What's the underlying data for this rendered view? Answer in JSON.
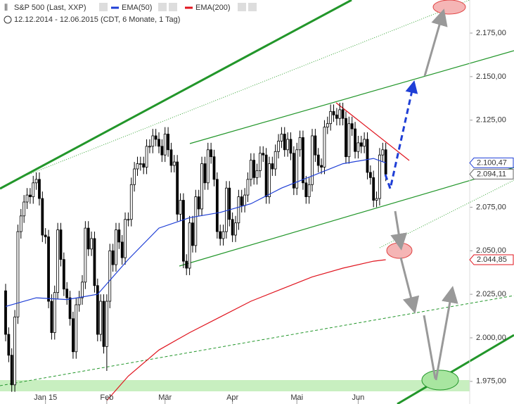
{
  "chart_data": {
    "type": "candlestick",
    "title": "S&P 500 (Last, XXP)",
    "subtitle": "12.12.2014 - 12.06.2015 (CDT, 6 Monate, 1 Tag)",
    "categories": [
      null,
      null,
      null,
      null,
      null,
      null,
      null,
      null,
      null,
      null,
      null,
      null,
      null,
      "Jan 15",
      null,
      null,
      null,
      null,
      null,
      null,
      null,
      null,
      null,
      null,
      null,
      null,
      null,
      null,
      null,
      null,
      null,
      null,
      null,
      "Feb",
      null,
      null,
      null,
      null,
      null,
      null,
      null,
      null,
      null,
      null,
      null,
      null,
      null,
      null,
      null,
      null,
      null,
      null,
      "Mär",
      null,
      null,
      null,
      null,
      null,
      null,
      null,
      null,
      null,
      null,
      null,
      null,
      null,
      null,
      null,
      null,
      null,
      null,
      null,
      null,
      null,
      "Apr",
      null,
      null,
      null,
      null,
      null,
      null,
      null,
      null,
      null,
      null,
      null,
      null,
      null,
      null,
      null,
      null,
      null,
      null,
      null,
      null,
      "Mai",
      null,
      null,
      null,
      null,
      null,
      null,
      null,
      null,
      null,
      null,
      null,
      null,
      null,
      null,
      null,
      null,
      null,
      null,
      null,
      "Jun",
      null,
      null,
      null,
      null,
      null,
      null,
      null,
      null,
      null
    ],
    "open": [
      2027,
      2002,
      1990,
      1973,
      2012,
      2061,
      2070,
      2078,
      2082,
      2081,
      2089,
      2091,
      2080,
      2059,
      2058,
      2021,
      2003,
      2026,
      2062,
      2045,
      2028,
      2023,
      2011,
      1992,
      2019,
      2023,
      2032,
      2063,
      2051,
      2057,
      2030,
      2002,
      2021,
      1995,
      2021,
      2050,
      2042,
      2062,
      2055,
      2046,
      2068,
      2068,
      2088,
      2097,
      2100,
      2100,
      2098,
      2110,
      2110,
      2116,
      2114,
      2110,
      2105,
      2117,
      2108,
      2099,
      2101,
      2071,
      2079,
      2044,
      2040,
      2066,
      2053,
      2081,
      2074,
      2100,
      2089,
      2108,
      2104,
      2091,
      2061,
      2057,
      2061,
      2086,
      2068,
      2059,
      2066,
      2081,
      2076,
      2082,
      2091,
      2102,
      2092,
      2096,
      2106,
      2105,
      2081,
      2100,
      2097,
      2107,
      2113,
      2117,
      2108,
      2114,
      2106,
      2086,
      2108,
      2115,
      2089,
      2081,
      2088,
      2116,
      2105,
      2099,
      2098,
      2121,
      2123,
      2130,
      2128,
      2126,
      2131,
      2126,
      2104,
      2123,
      2120,
      2107,
      2112,
      2110,
      2114,
      2095,
      2092,
      2079,
      2080,
      2105,
      2108
    ],
    "high": [
      2031,
      2006,
      1994,
      2016,
      2065,
      2074,
      2082,
      2086,
      2086,
      2093,
      2095,
      2095,
      2084,
      2063,
      2062,
      2025,
      2030,
      2066,
      2066,
      2049,
      2032,
      2027,
      2015,
      2023,
      2027,
      2036,
      2067,
      2067,
      2061,
      2061,
      2034,
      2025,
      2025,
      2025,
      2054,
      2054,
      2066,
      2066,
      2059,
      2072,
      2072,
      2092,
      2101,
      2104,
      2104,
      2104,
      2114,
      2114,
      2120,
      2120,
      2118,
      2114,
      2121,
      2121,
      2112,
      2105,
      2105,
      2083,
      2083,
      2048,
      2070,
      2070,
      2085,
      2085,
      2104,
      2104,
      2112,
      2112,
      2108,
      2095,
      2065,
      2065,
      2090,
      2090,
      2072,
      2070,
      2085,
      2085,
      2086,
      2095,
      2106,
      2106,
      2100,
      2110,
      2110,
      2109,
      2104,
      2104,
      2111,
      2117,
      2121,
      2121,
      2118,
      2118,
      2110,
      2112,
      2119,
      2119,
      2093,
      2092,
      2120,
      2120,
      2109,
      2103,
      2125,
      2127,
      2134,
      2134,
      2132,
      2135,
      2135,
      2130,
      2127,
      2127,
      2124,
      2116,
      2116,
      2118,
      2118,
      2099,
      2096,
      2084,
      2109,
      2112,
      2112
    ],
    "low": [
      1998,
      1986,
      1969,
      1969,
      2008,
      2057,
      2066,
      2074,
      2077,
      2077,
      2085,
      2076,
      2055,
      2054,
      2017,
      1999,
      1999,
      2022,
      2041,
      2024,
      2019,
      2007,
      1988,
      1988,
      2015,
      2019,
      2028,
      2047,
      2047,
      2026,
      1998,
      1998,
      1991,
      1981,
      2017,
      2038,
      2038,
      2051,
      2042,
      2042,
      2064,
      2064,
      2084,
      2093,
      2096,
      2094,
      2094,
      2106,
      2106,
      2110,
      2106,
      2101,
      2101,
      2104,
      2095,
      2095,
      2067,
      2067,
      2040,
      2036,
      2036,
      2049,
      2049,
      2070,
      2070,
      2085,
      2085,
      2100,
      2087,
      2057,
      2053,
      2053,
      2057,
      2064,
      2055,
      2055,
      2062,
      2072,
      2072,
      2078,
      2087,
      2088,
      2088,
      2092,
      2101,
      2077,
      2077,
      2093,
      2093,
      2103,
      2109,
      2104,
      2104,
      2102,
      2082,
      2082,
      2104,
      2085,
      2077,
      2077,
      2084,
      2101,
      2095,
      2094,
      2094,
      2117,
      2119,
      2124,
      2122,
      2122,
      2122,
      2100,
      2100,
      2116,
      2103,
      2103,
      2106,
      2106,
      2091,
      2088,
      2075,
      2075,
      2076,
      2101,
      2090
    ],
    "close": [
      2002,
      1990,
      1973,
      2012,
      2061,
      2070,
      2078,
      2082,
      2081,
      2089,
      2091,
      2080,
      2059,
      2058,
      2021,
      2003,
      2026,
      2062,
      2045,
      2028,
      2023,
      2011,
      1992,
      2019,
      2023,
      2032,
      2063,
      2051,
      2057,
      2030,
      2002,
      2021,
      1995,
      2021,
      2050,
      2042,
      2062,
      2055,
      2046,
      2068,
      2068,
      2088,
      2097,
      2100,
      2100,
      2098,
      2110,
      2110,
      2116,
      2114,
      2110,
      2105,
      2117,
      2108,
      2099,
      2101,
      2071,
      2079,
      2044,
      2040,
      2066,
      2053,
      2081,
      2074,
      2100,
      2089,
      2108,
      2104,
      2091,
      2061,
      2057,
      2061,
      2086,
      2068,
      2059,
      2066,
      2081,
      2076,
      2082,
      2091,
      2102,
      2092,
      2096,
      2106,
      2105,
      2081,
      2100,
      2097,
      2107,
      2113,
      2117,
      2108,
      2114,
      2106,
      2086,
      2108,
      2115,
      2089,
      2081,
      2088,
      2116,
      2105,
      2099,
      2098,
      2121,
      2123,
      2130,
      2128,
      2126,
      2131,
      2126,
      2104,
      2123,
      2120,
      2107,
      2112,
      2110,
      2114,
      2095,
      2092,
      2079,
      2080,
      2105,
      2108,
      2094
    ],
    "last_label": "2.094,11",
    "overlays": [
      {
        "name": "EMA(50)",
        "color": "#1f3fd6",
        "x": [
          0,
          10,
          20,
          30,
          40,
          50,
          60,
          70,
          80,
          90,
          100,
          110,
          120,
          124
        ],
        "values": [
          2018,
          2023,
          2022,
          2025,
          2045,
          2063,
          2069,
          2072,
          2077,
          2086,
          2093,
          2100,
          2103,
          2100.47
        ],
        "last_label": "2.100,47"
      },
      {
        "name": "EMA(200)",
        "color": "#e0141e",
        "x": [
          33,
          40,
          50,
          60,
          70,
          80,
          90,
          100,
          110,
          120,
          124
        ],
        "values": [
          1964,
          1978,
          1993,
          2003,
          2012,
          2021,
          2028,
          2035,
          2040,
          2044,
          2044.85
        ],
        "last_label": "2.044,85"
      }
    ],
    "ylim": [
      1962,
      2194
    ],
    "yticks": [
      {
        "value": 1975,
        "label": "1.975,00"
      },
      {
        "value": 2000,
        "label": "2.000,00"
      },
      {
        "value": 2025,
        "label": "2.025,00"
      },
      {
        "value": 2050,
        "label": "2.050,00"
      },
      {
        "value": 2075,
        "label": "2.075,00"
      },
      {
        "value": 2100,
        "label": "2.100,00"
      },
      {
        "value": 2125,
        "label": "2.125,00"
      },
      {
        "value": 2150,
        "label": "2.150,00"
      },
      {
        "value": 2175,
        "label": "2.175,00"
      }
    ]
  }
}
